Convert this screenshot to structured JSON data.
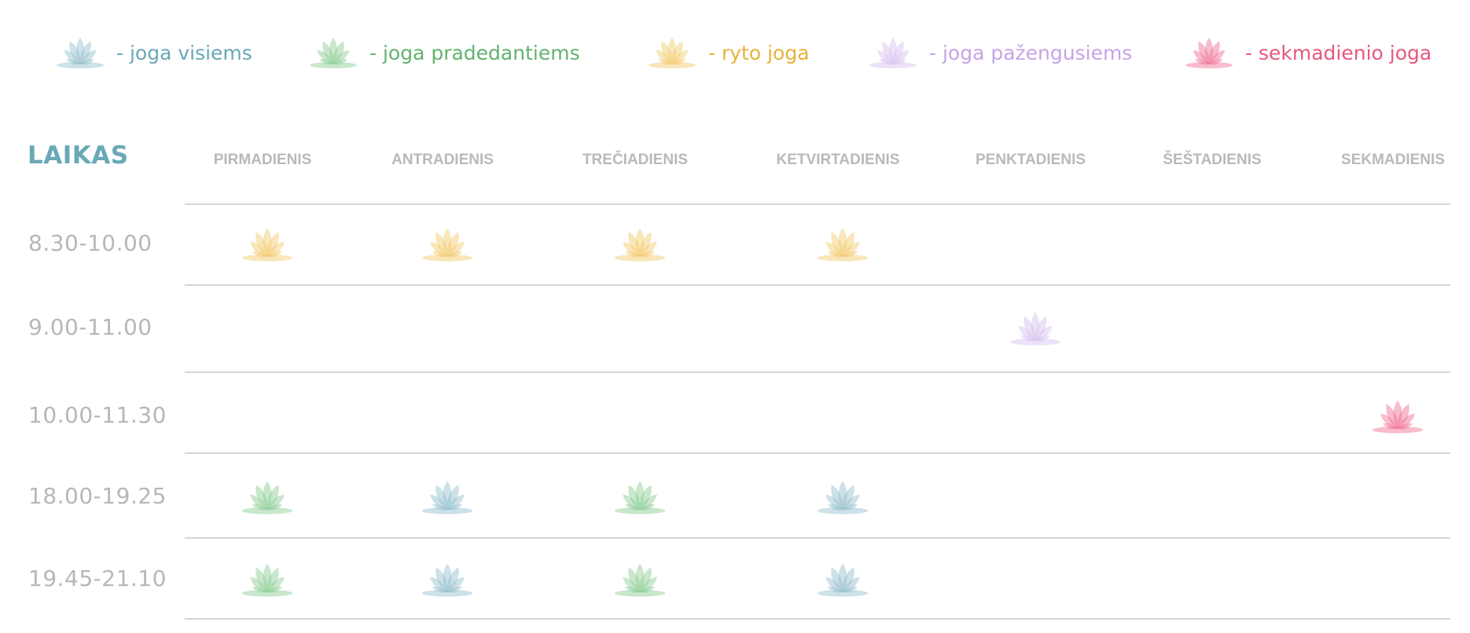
{
  "legend": [
    {
      "key": "visiems",
      "text": "- joga visiems",
      "color": "#6aa8b6",
      "lotus": "#8fbccb"
    },
    {
      "key": "pradedantiems",
      "text": "- joga pradedantiems",
      "color": "#63b26e",
      "lotus": "#86c98d"
    },
    {
      "key": "ryto",
      "text": "- ryto joga",
      "color": "#e9b13a",
      "lotus": "#f2c764"
    },
    {
      "key": "pazengusiems",
      "text": "- joga pažengusiems",
      "color": "#c6a4e8",
      "lotus": "#d5bff0"
    },
    {
      "key": "sekmadienio",
      "text": "- sekmadienio joga",
      "color": "#e8587d",
      "lotus": "#f06a8e"
    }
  ],
  "header": {
    "time_label": "LAIKAS"
  },
  "days": [
    "PIRMADIENIS",
    "ANTRADIENIS",
    "TREČIADIENIS",
    "KETVIRTADIENIS",
    "PENKTADIENIS",
    "ŠEŠTADIENIS",
    "SEKMADIENIS"
  ],
  "rows": [
    {
      "time": "8.30-10.00",
      "classes": [
        "ryto",
        "ryto",
        "ryto",
        "ryto",
        null,
        null,
        null
      ]
    },
    {
      "time": "9.00-11.00",
      "classes": [
        null,
        null,
        null,
        null,
        "pazengusiems",
        null,
        null
      ]
    },
    {
      "time": "10.00-11.30",
      "classes": [
        null,
        null,
        null,
        null,
        null,
        null,
        "sekmadienio"
      ]
    },
    {
      "time": "18.00-19.25",
      "classes": [
        "pradedantiems",
        "visiems",
        "pradedantiems",
        "visiems",
        null,
        null,
        null
      ]
    },
    {
      "time": "19.45-21.10",
      "classes": [
        "pradedantiems",
        "visiems",
        "pradedantiems",
        "visiems",
        null,
        null,
        null
      ]
    }
  ]
}
